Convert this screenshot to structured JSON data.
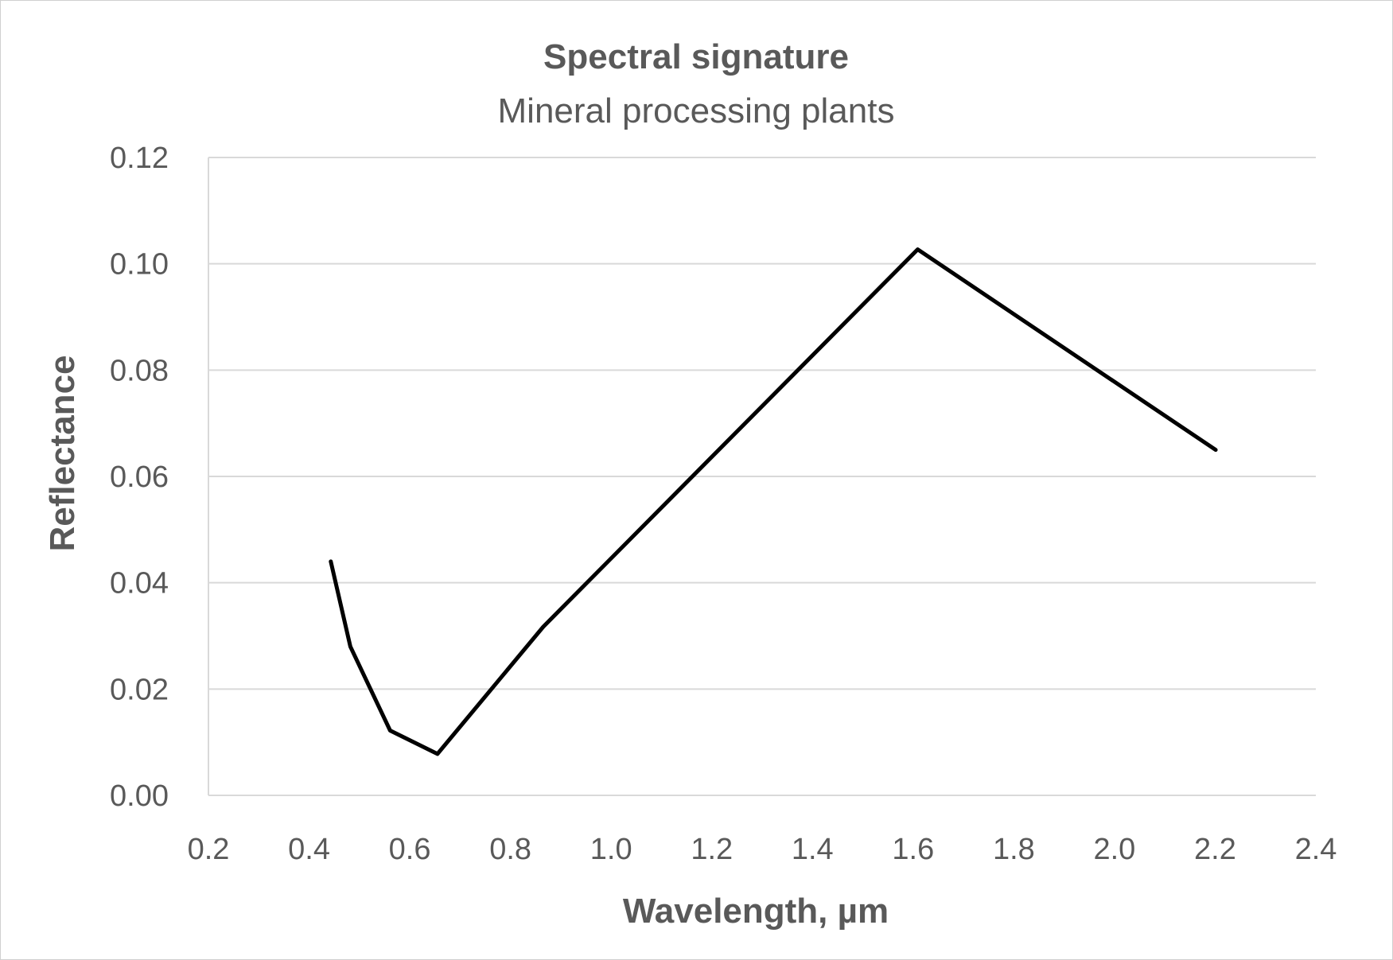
{
  "chart_data": {
    "type": "line",
    "title": "Spectral signature",
    "subtitle": "Mineral processing plants",
    "xlabel": "Wavelength, µm",
    "ylabel": "Reflectance",
    "xlim": [
      0.2,
      2.4
    ],
    "ylim": [
      0,
      0.12
    ],
    "x_ticks": [
      "0.2",
      "0.4",
      "0.6",
      "0.8",
      "1.0",
      "1.2",
      "1.4",
      "1.6",
      "1.8",
      "2.0",
      "2.2",
      "2.4"
    ],
    "y_ticks": [
      "0.00",
      "0.02",
      "0.04",
      "0.06",
      "0.08",
      "0.10",
      "0.12"
    ],
    "x_tick_values": [
      0.2,
      0.4,
      0.6,
      0.8,
      1.0,
      1.2,
      1.4,
      1.6,
      1.8,
      2.0,
      2.2,
      2.4
    ],
    "y_tick_values": [
      0,
      0.02,
      0.04,
      0.06,
      0.08,
      0.1,
      0.12
    ],
    "grid": true,
    "legend": "none",
    "series": [
      {
        "color": "#000000",
        "x": [
          0.443,
          0.482,
          0.561,
          0.655,
          0.865,
          1.609,
          2.201
        ],
        "y": [
          0.044,
          0.028,
          0.0122,
          0.0078,
          0.0317,
          0.1027,
          0.065
        ]
      }
    ]
  }
}
